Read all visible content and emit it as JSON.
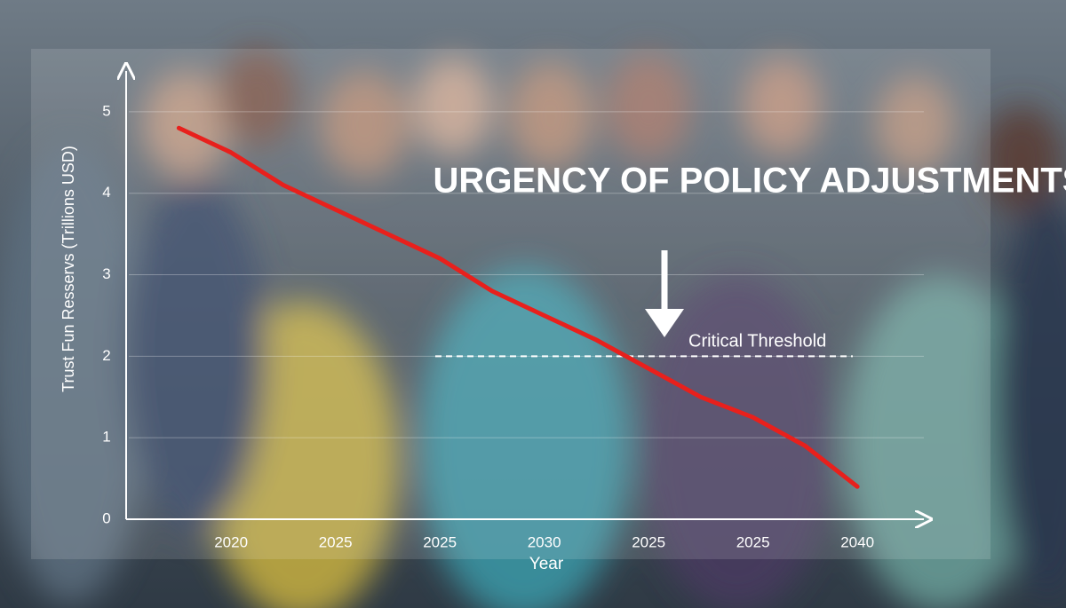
{
  "chart_data": {
    "type": "line",
    "annotation": "URGENCY OF POLICY ADJUSTMENTS",
    "xlabel": "Year",
    "ylabel": "Trust Fun Resservs (Trillions USD)",
    "categories": [
      null,
      "2020",
      null,
      "2025",
      null,
      "2025",
      null,
      "2030",
      null,
      "2025",
      null,
      "2025",
      null,
      "2040"
    ],
    "series": [
      {
        "color": "#e8201c",
        "values": [
          4.8,
          4.5,
          4.1,
          3.8,
          3.5,
          3.2,
          2.8,
          2.5,
          2.2,
          1.85,
          1.5,
          1.25,
          0.9,
          0.4
        ]
      }
    ],
    "threshold": {
      "value": 2,
      "label": "Critical Threshold"
    },
    "ylim": [
      0,
      5.5
    ],
    "yticks": [
      0,
      1,
      2,
      3,
      4,
      5
    ],
    "grid": true
  }
}
